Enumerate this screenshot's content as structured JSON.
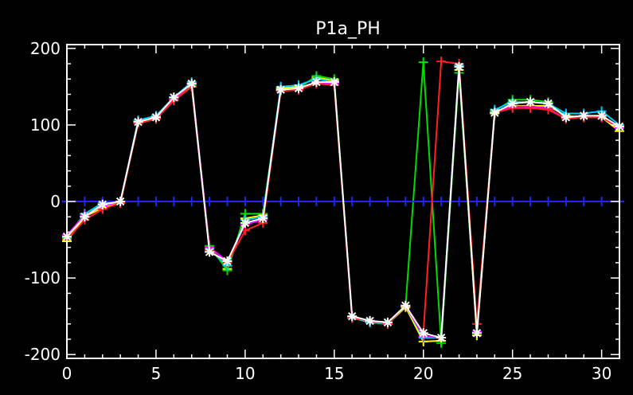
{
  "chart_data": {
    "type": "line",
    "title": "P1a_PH",
    "xlabel": "",
    "ylabel": "",
    "xlim": [
      0,
      31
    ],
    "ylim": [
      -205,
      205
    ],
    "xticks": [
      0,
      5,
      10,
      15,
      20,
      25,
      30
    ],
    "xtick_labels": [
      "0",
      "5",
      "10",
      "15",
      "20",
      "25",
      "30"
    ],
    "yticks": [
      -200,
      -100,
      0,
      100,
      200
    ],
    "ytick_labels": [
      "-200",
      "-100",
      "0",
      "100",
      "200"
    ],
    "grid": false,
    "legend": "none",
    "background": "#000000",
    "axis_color": "#ffffff",
    "x": [
      0,
      1,
      2,
      3,
      4,
      5,
      6,
      7,
      8,
      9,
      10,
      11,
      12,
      13,
      14,
      15,
      16,
      17,
      18,
      19,
      20,
      21,
      22,
      23,
      24,
      25,
      26,
      27,
      28,
      29,
      30,
      31
    ],
    "series": [
      {
        "color": "#ffff00",
        "marker": "plus",
        "values": [
          -52,
          -20,
          -8,
          -2,
          102,
          108,
          132,
          150,
          -60,
          -88,
          -22,
          -18,
          148,
          150,
          162,
          158,
          -152,
          -158,
          -160,
          -138,
          -183,
          -182,
          172,
          -175,
          115,
          125,
          125,
          125,
          112,
          110,
          110,
          92
        ]
      },
      {
        "color": "#00dd00",
        "marker": "plus",
        "values": [
          -48,
          -18,
          -4,
          0,
          104,
          110,
          134,
          152,
          -58,
          -90,
          -16,
          -16,
          146,
          148,
          164,
          160,
          -150,
          -156,
          -160,
          -136,
          182,
          -185,
          168,
          -172,
          118,
          133,
          133,
          130,
          110,
          112,
          112,
          96
        ]
      },
      {
        "color": "#00ccff",
        "marker": "plus",
        "values": [
          -46,
          -16,
          -2,
          0,
          106,
          112,
          136,
          156,
          -62,
          -84,
          -24,
          -20,
          150,
          152,
          160,
          156,
          -152,
          -158,
          -160,
          -136,
          -178,
          -178,
          178,
          -170,
          120,
          130,
          130,
          128,
          115,
          115,
          118,
          100
        ]
      },
      {
        "color": "#ff00ff",
        "marker": "plus",
        "values": [
          -44,
          -18,
          -6,
          0,
          104,
          110,
          134,
          154,
          -60,
          -78,
          -30,
          -24,
          146,
          146,
          156,
          154,
          -152,
          -156,
          -158,
          -136,
          -176,
          -178,
          176,
          -170,
          116,
          124,
          124,
          122,
          108,
          112,
          110,
          96
        ]
      },
      {
        "color": "#2222ff",
        "marker": "plus",
        "values": [
          0,
          0,
          0,
          0,
          0,
          0,
          0,
          0,
          0,
          0,
          0,
          0,
          0,
          0,
          0,
          0,
          0,
          0,
          0,
          0,
          0,
          0,
          0,
          0,
          0,
          0,
          0,
          0,
          0,
          0,
          0,
          0
        ]
      },
      {
        "color": "#ff2020",
        "marker": "plus",
        "values": [
          -50,
          -24,
          -10,
          -2,
          102,
          108,
          132,
          150,
          -64,
          -80,
          -38,
          -28,
          144,
          146,
          154,
          152,
          -152,
          -156,
          -160,
          -136,
          -172,
          183,
          180,
          -160,
          116,
          122,
          122,
          120,
          108,
          110,
          110,
          98
        ]
      },
      {
        "color": "#ffffff",
        "marker": "star",
        "values": [
          -46,
          -20,
          -4,
          0,
          104,
          110,
          136,
          154,
          -66,
          -78,
          -28,
          -22,
          146,
          148,
          156,
          156,
          -150,
          -156,
          -158,
          -136,
          -172,
          -178,
          176,
          -172,
          116,
          128,
          130,
          128,
          110,
          112,
          112,
          98
        ]
      }
    ]
  }
}
